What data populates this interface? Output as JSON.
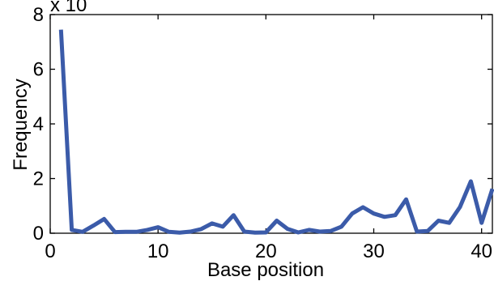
{
  "chart_data": {
    "type": "line",
    "title": "",
    "xlabel": "Base position",
    "ylabel": "Frequency",
    "y_multiplier_label": "x 10",
    "xlim": [
      0,
      41
    ],
    "ylim": [
      0,
      8
    ],
    "x_ticks": [
      0,
      10,
      20,
      30,
      40
    ],
    "y_ticks": [
      0,
      2,
      4,
      6,
      8
    ],
    "grid": false,
    "line_color": "#3b5ba9",
    "series": [
      {
        "x": [
          1,
          2,
          3,
          4,
          5,
          6,
          7,
          8,
          9,
          10,
          11,
          12,
          13,
          14,
          15,
          16,
          17,
          18,
          19,
          20,
          21,
          22,
          23,
          24,
          25,
          26,
          27,
          28,
          29,
          30,
          31,
          32,
          33,
          34,
          35,
          36,
          37,
          38,
          39,
          40,
          41
        ],
        "values": [
          7.45,
          0.12,
          0.05,
          0.28,
          0.52,
          0.04,
          0.05,
          0.05,
          0.12,
          0.22,
          0.05,
          0.02,
          0.06,
          0.15,
          0.36,
          0.24,
          0.66,
          0.06,
          0.02,
          0.03,
          0.46,
          0.16,
          0.03,
          0.12,
          0.06,
          0.08,
          0.24,
          0.72,
          0.95,
          0.72,
          0.6,
          0.66,
          1.24,
          0.06,
          0.08,
          0.46,
          0.38,
          0.96,
          1.9,
          0.38,
          1.62
        ]
      }
    ]
  }
}
